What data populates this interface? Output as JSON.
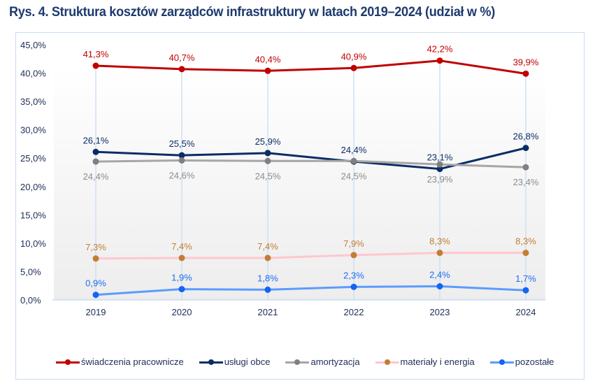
{
  "chart_data": {
    "type": "line",
    "title": "Rys. 4. Struktura kosztów zarządców infrastruktury w latach 2019–2024 (udział w %)",
    "xlabel": "",
    "ylabel": "",
    "ylim": [
      0,
      45
    ],
    "y_ticks": [
      0,
      5,
      10,
      15,
      20,
      25,
      30,
      35,
      40,
      45
    ],
    "y_tick_labels": [
      "0,0%",
      "5,0%",
      "10,0%",
      "15,0%",
      "20,0%",
      "25,0%",
      "30,0%",
      "35,0%",
      "40,0%",
      "45,0%"
    ],
    "categories": [
      "2019",
      "2020",
      "2021",
      "2022",
      "2023",
      "2024"
    ],
    "grid": false,
    "drop_lines": true,
    "legend_position": "bottom",
    "series": [
      {
        "name": "świadczenia pracownicze",
        "values": [
          41.3,
          40.7,
          40.4,
          40.9,
          42.2,
          39.9
        ],
        "labels": [
          "41,3%",
          "40,7%",
          "40,4%",
          "40,9%",
          "42,2%",
          "39,9%"
        ],
        "line_color": "#c00000",
        "marker_color": "#c00000",
        "label_color": "#c00000",
        "label_position": "above"
      },
      {
        "name": "usługi obce",
        "values": [
          26.1,
          25.5,
          25.9,
          24.4,
          23.1,
          26.8
        ],
        "labels": [
          "26,1%",
          "25,5%",
          "25,9%",
          "24,4%",
          "23,1%",
          "26,8%"
        ],
        "line_color": "#0b2d66",
        "marker_color": "#0b2d66",
        "label_color": "#0b2d66",
        "label_position": "above"
      },
      {
        "name": "amortyzacja",
        "values": [
          24.4,
          24.6,
          24.5,
          24.5,
          23.9,
          23.4
        ],
        "labels": [
          "24,4%",
          "24,6%",
          "24,5%",
          "24,5%",
          "23,9%",
          "23,4%"
        ],
        "line_color": "#a6a6a6",
        "marker_color": "#808080",
        "label_color": "#8c8c8c",
        "label_position": "below"
      },
      {
        "name": "materiały i energia",
        "values": [
          7.3,
          7.4,
          7.4,
          7.9,
          8.3,
          8.3
        ],
        "labels": [
          "7,3%",
          "7,4%",
          "7,4%",
          "7,9%",
          "8,3%",
          "8,3%"
        ],
        "line_color": "#ffc7ce",
        "marker_color": "#c27e35",
        "label_color": "#c27e35",
        "label_position": "above"
      },
      {
        "name": "pozostałe",
        "values": [
          0.9,
          1.9,
          1.8,
          2.3,
          2.4,
          1.7
        ],
        "labels": [
          "0,9%",
          "1,9%",
          "1,8%",
          "2,3%",
          "2,4%",
          "1,7%"
        ],
        "line_color": "#5b9bff",
        "marker_color": "#1464f4",
        "label_color": "#1f6cf0",
        "label_position": "above"
      }
    ]
  }
}
